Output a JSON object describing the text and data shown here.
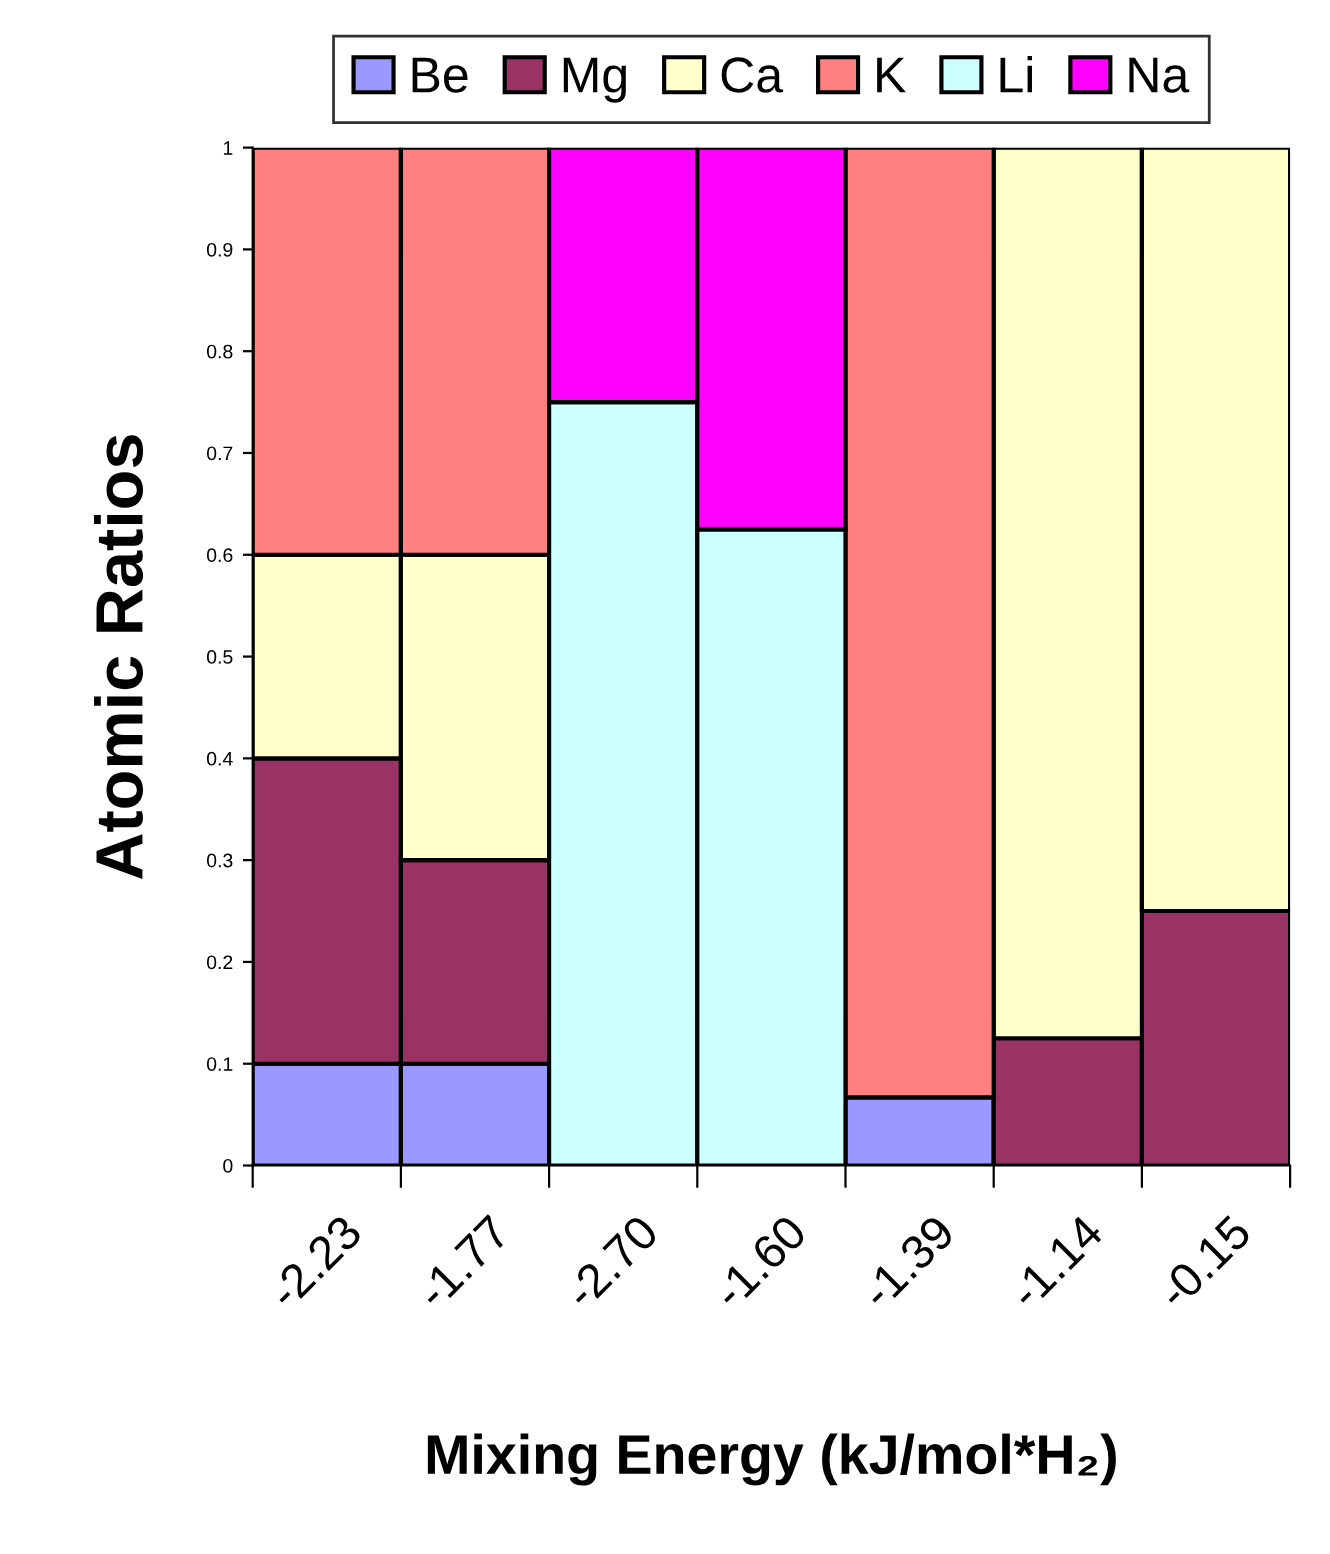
{
  "chart_data": {
    "type": "bar",
    "stacked": true,
    "xlabel": "Mixing Energy (kJ/mol*H₂)",
    "ylabel": "Atomic Ratios",
    "categories": [
      "-2.23",
      "-1.77",
      "-2.70",
      "-1.60",
      "-1.39",
      "-1.14",
      "-0.15"
    ],
    "series": [
      {
        "name": "Be",
        "color": "#9999ff",
        "values": [
          0.1,
          0.1,
          null,
          null,
          0.067,
          null,
          null
        ]
      },
      {
        "name": "Mg",
        "color": "#993366",
        "values": [
          0.3,
          0.2,
          null,
          null,
          null,
          0.125,
          0.25
        ]
      },
      {
        "name": "Ca",
        "color": "#ffffcc",
        "values": [
          0.2,
          0.3,
          null,
          null,
          null,
          0.875,
          0.75
        ]
      },
      {
        "name": "K",
        "color": "#ff8080",
        "values": [
          0.4,
          0.4,
          null,
          null,
          0.933,
          null,
          null
        ]
      },
      {
        "name": "Li",
        "color": "#ccffff",
        "values": [
          null,
          null,
          0.75,
          0.625,
          null,
          null,
          null
        ]
      },
      {
        "name": "Na",
        "color": "#ff00ff",
        "values": [
          null,
          null,
          0.25,
          0.375,
          null,
          null,
          null
        ]
      }
    ],
    "ylim": [
      0,
      1
    ],
    "yticks": [
      0,
      0.1,
      0.2,
      0.3,
      0.4,
      0.5,
      0.6,
      0.7,
      0.8,
      0.9,
      1
    ],
    "grid": false,
    "legend": "top"
  }
}
